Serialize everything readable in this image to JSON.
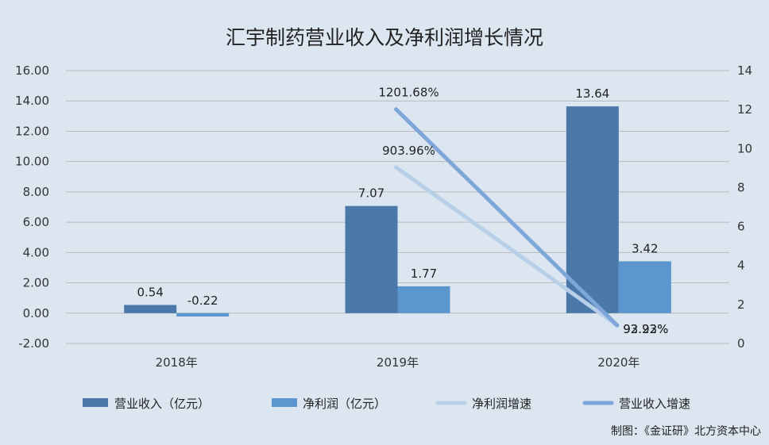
{
  "chart_data": {
    "type": "bar",
    "title": "汇宇制药营业收入及净利润增长情况",
    "categories": [
      "2018年",
      "2019年",
      "2020年"
    ],
    "y_left": {
      "ticks": [
        "16.00",
        "14.00",
        "12.00",
        "10.00",
        "8.00",
        "6.00",
        "4.00",
        "2.00",
        "0.00",
        "-2.00"
      ],
      "range": [
        -2,
        16
      ]
    },
    "y_right": {
      "ticks": [
        "14",
        "12",
        "10",
        "8",
        "6",
        "4",
        "2",
        "0"
      ],
      "range": [
        0,
        14
      ]
    },
    "series": [
      {
        "name": "营业收入（亿元）",
        "kind": "bar",
        "axis": "left",
        "color": "#4a78a8",
        "values": [
          0.54,
          7.07,
          13.64
        ],
        "labels": [
          "0.54",
          "7.07",
          "13.64"
        ]
      },
      {
        "name": "净利润（亿元）",
        "kind": "bar",
        "axis": "left",
        "color": "#5b96cf",
        "values": [
          -0.22,
          1.77,
          3.42
        ],
        "labels": [
          "-0.22",
          "1.77",
          "3.42"
        ]
      },
      {
        "name": "净利润增速",
        "kind": "line",
        "axis": "right",
        "color": "#b8cfe8",
        "values": [
          null,
          9.0396,
          0.9322
        ],
        "labels": [
          "",
          "903.96%",
          "93.22%"
        ]
      },
      {
        "name": "营业收入增速",
        "kind": "line",
        "axis": "right",
        "color": "#7ea6d8",
        "values": [
          null,
          12.0168,
          0.9293
        ],
        "labels": [
          "",
          "1201.68%",
          "92.93%"
        ]
      }
    ],
    "legend_position": "bottom",
    "grid": true
  },
  "credit": "制图：《金证研》北方资本中心"
}
